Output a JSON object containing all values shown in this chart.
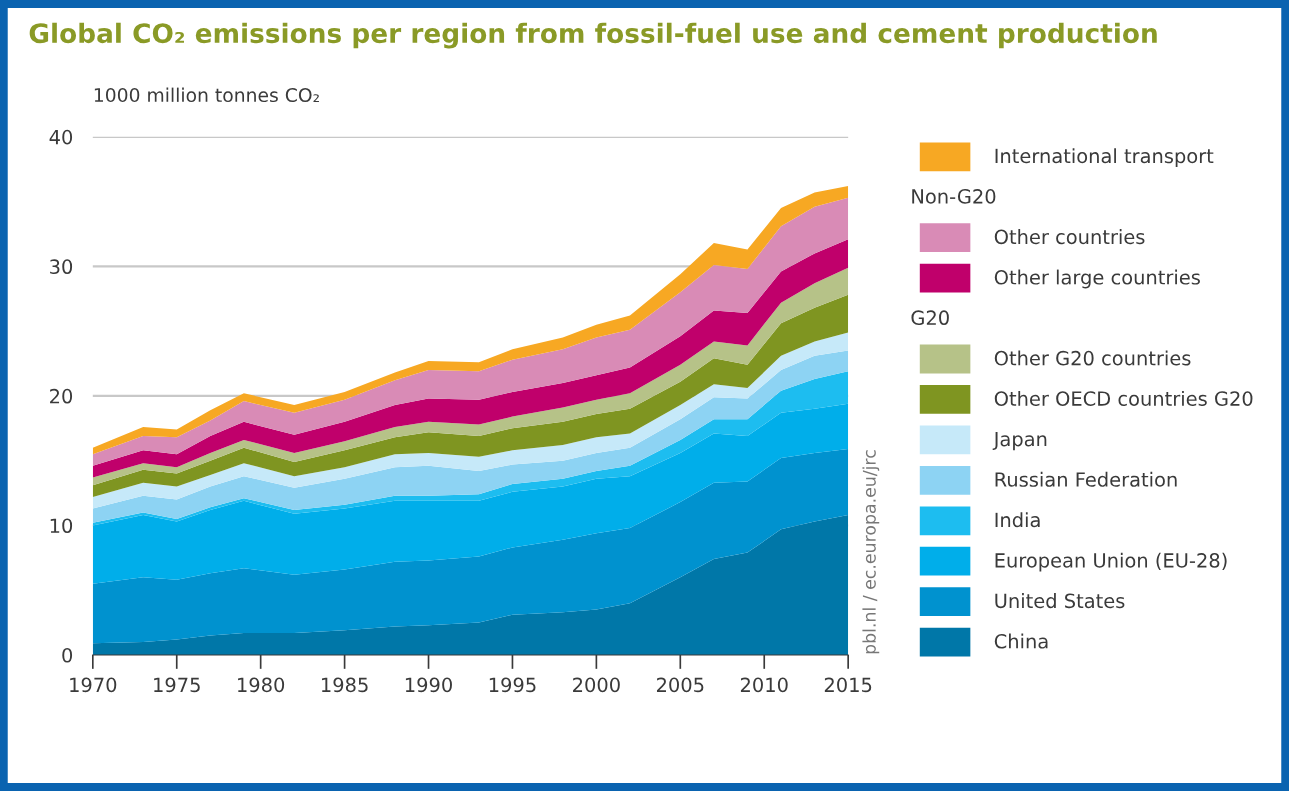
{
  "chart_data": {
    "type": "area",
    "stacked": true,
    "title": "Global CO₂ emissions per region from fossil-fuel use and cement production",
    "ylabel": "1000 million tonnes CO₂",
    "x": [
      1970,
      1973,
      1975,
      1977,
      1979,
      1982,
      1985,
      1988,
      1990,
      1993,
      1995,
      1998,
      2000,
      2002,
      2005,
      2007,
      2009,
      2011,
      2013,
      2015
    ],
    "xlim": [
      1970,
      2015
    ],
    "xticks": [
      1970,
      1975,
      1980,
      1985,
      1990,
      1995,
      2000,
      2005,
      2010,
      2015
    ],
    "ylim": [
      0,
      40
    ],
    "yticks": [
      0,
      10,
      20,
      30,
      40
    ],
    "grid": "y",
    "legend": "right",
    "annotations": [
      "Non-G20",
      "G20",
      "pbl.nl / ec.europa.eu/jrc"
    ],
    "series": [
      {
        "name": "China",
        "color": "#0077a8",
        "values": [
          0.9,
          1.0,
          1.2,
          1.5,
          1.7,
          1.7,
          1.9,
          2.2,
          2.3,
          2.5,
          3.1,
          3.3,
          3.5,
          4.0,
          6.0,
          7.4,
          7.9,
          9.7,
          10.3,
          10.8
        ]
      },
      {
        "name": "United States",
        "color": "#0092cf",
        "values": [
          4.6,
          5.0,
          4.6,
          4.8,
          5.0,
          4.5,
          4.7,
          5.0,
          5.0,
          5.1,
          5.2,
          5.6,
          5.9,
          5.8,
          5.8,
          5.9,
          5.5,
          5.5,
          5.3,
          5.1
        ]
      },
      {
        "name": "European Union (EU-28)",
        "color": "#00aeea",
        "values": [
          4.5,
          4.8,
          4.5,
          4.9,
          5.2,
          4.7,
          4.7,
          4.7,
          4.6,
          4.3,
          4.3,
          4.1,
          4.2,
          4.0,
          3.8,
          3.8,
          3.5,
          3.5,
          3.4,
          3.5
        ]
      },
      {
        "name": "India",
        "color": "#1dbdf0",
        "values": [
          0.2,
          0.2,
          0.2,
          0.2,
          0.2,
          0.3,
          0.3,
          0.4,
          0.4,
          0.5,
          0.6,
          0.6,
          0.6,
          0.8,
          1.0,
          1.1,
          1.3,
          1.7,
          2.3,
          2.5
        ]
      },
      {
        "name": "Russian Federation",
        "color": "#8dd3f3",
        "values": [
          1.1,
          1.3,
          1.5,
          1.6,
          1.7,
          1.7,
          2.0,
          2.2,
          2.3,
          1.8,
          1.5,
          1.4,
          1.4,
          1.4,
          1.6,
          1.7,
          1.6,
          1.6,
          1.8,
          1.6
        ]
      },
      {
        "name": "Japan",
        "color": "#c6e9f9",
        "values": [
          0.9,
          1.0,
          1.0,
          0.9,
          1.0,
          0.9,
          0.9,
          1.0,
          1.0,
          1.1,
          1.1,
          1.2,
          1.2,
          1.1,
          1.1,
          1.0,
          0.8,
          1.1,
          1.1,
          1.4
        ]
      },
      {
        "name": "Other OECD countries G20",
        "color": "#7f9521",
        "values": [
          0.9,
          1.0,
          1.0,
          1.1,
          1.2,
          1.1,
          1.3,
          1.3,
          1.6,
          1.6,
          1.7,
          1.8,
          1.8,
          1.9,
          1.8,
          2.0,
          1.8,
          2.5,
          2.6,
          2.9
        ]
      },
      {
        "name": "Other G20 countries",
        "color": "#b6c288",
        "values": [
          0.6,
          0.5,
          0.5,
          0.6,
          0.6,
          0.7,
          0.7,
          0.8,
          0.8,
          0.9,
          0.9,
          1.1,
          1.1,
          1.2,
          1.3,
          1.3,
          1.5,
          1.6,
          1.9,
          2.1
        ]
      },
      {
        "name": "Other large countries",
        "color": "#c0006b",
        "values": [
          0.9,
          1.0,
          1.0,
          1.3,
          1.4,
          1.4,
          1.5,
          1.7,
          1.8,
          1.9,
          1.9,
          1.9,
          1.9,
          2.0,
          2.2,
          2.4,
          2.5,
          2.4,
          2.3,
          2.2
        ]
      },
      {
        "name": "Other countries",
        "color": "#d98bb6",
        "values": [
          0.9,
          1.1,
          1.3,
          1.2,
          1.6,
          1.7,
          1.7,
          1.9,
          2.2,
          2.2,
          2.5,
          2.6,
          2.9,
          2.9,
          3.4,
          3.5,
          3.4,
          3.5,
          3.6,
          3.2
        ]
      },
      {
        "name": "International transport",
        "color": "#f7a823",
        "values": [
          0.5,
          0.7,
          0.6,
          0.8,
          0.6,
          0.6,
          0.6,
          0.6,
          0.7,
          0.7,
          0.8,
          0.9,
          1.0,
          1.1,
          1.4,
          1.7,
          1.5,
          1.4,
          1.1,
          0.9
        ]
      }
    ]
  }
}
